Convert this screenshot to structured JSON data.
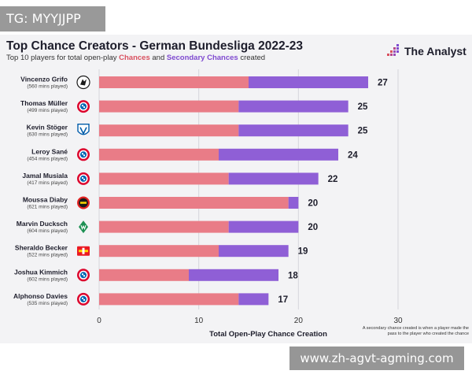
{
  "watermark_top": "TG: MYYJJPP",
  "watermark_bottom": "www.zh-agvt-agming.com",
  "header": {
    "title": "Top Chance Creators - German Bundesliga 2022-23",
    "subtitle_prefix": "Top 10 players for total open-play ",
    "subtitle_chances": "Chances",
    "subtitle_and": " and ",
    "subtitle_secondary": "Secondary Chances",
    "subtitle_suffix": " created",
    "brand": "The Analyst"
  },
  "footnote": "A secondary chance created is when a player made the pass to the player who created the chance",
  "colors": {
    "chances": "#e97c87",
    "secondary": "#8f5fd6",
    "grid": "#d6d6dc",
    "text": "#1d1d2b"
  },
  "chart_data": {
    "type": "bar",
    "orientation": "horizontal",
    "stacked": true,
    "xlabel": "Total Open-Play Chance Creation",
    "xlim": [
      0,
      30
    ],
    "xticks": [
      "0",
      "10",
      "20",
      "30"
    ],
    "grid": true,
    "categories": [
      "Vincenzo Grifo",
      "Thomas Müller",
      "Kevin Stöger",
      "Leroy Sané",
      "Jamal Musiala",
      "Moussa Diaby",
      "Marvin Ducksch",
      "Sheraldo Becker",
      "Joshua Kimmich",
      "Alphonso Davies"
    ],
    "minutes": [
      "(560 mins played)",
      "(499 mins played)",
      "(630 mins played)",
      "(454 mins played)",
      "(417 mins played)",
      "(621 mins played)",
      "(604 mins played)",
      "(522 mins played)",
      "(602 mins played)",
      "(535 mins played)"
    ],
    "club_icons": [
      "freiburg-icon",
      "bayern-icon",
      "bochum-icon",
      "bayern-icon",
      "bayern-icon",
      "leverkusen-icon",
      "bremen-icon",
      "union-berlin-icon",
      "bayern-icon",
      "bayern-icon"
    ],
    "series": [
      {
        "name": "Chances",
        "values": [
          15,
          14,
          14,
          12,
          13,
          19,
          13,
          12,
          9,
          14
        ]
      },
      {
        "name": "Secondary Chances",
        "values": [
          12,
          11,
          11,
          12,
          9,
          1,
          7,
          7,
          9,
          3
        ]
      }
    ],
    "totals": [
      "27",
      "25",
      "25",
      "24",
      "22",
      "20",
      "20",
      "19",
      "18",
      "17"
    ]
  }
}
